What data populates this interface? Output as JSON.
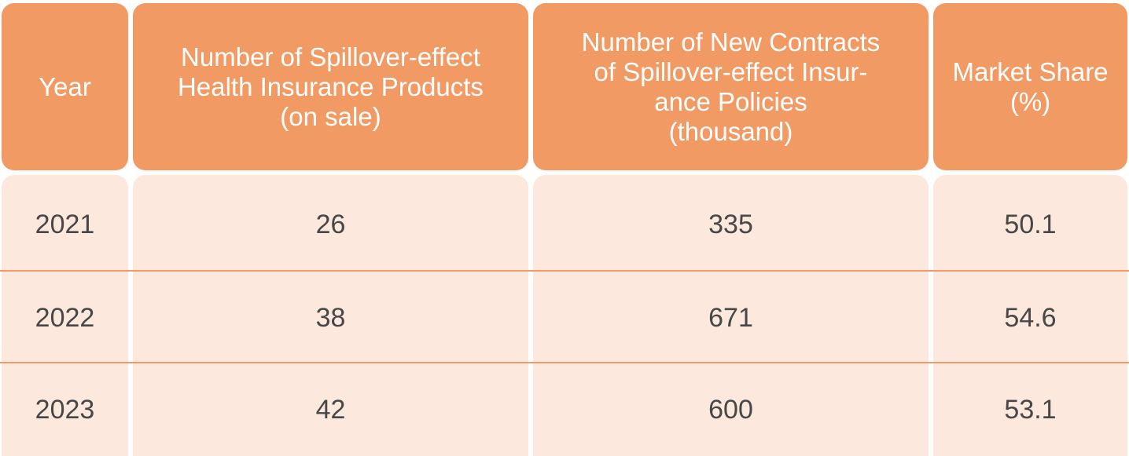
{
  "colors": {
    "header_bg": "#f29a63",
    "body_bg": "#fce8dc",
    "divider": "#f29a63",
    "header_text": "#ffffff",
    "body_text": "#474747"
  },
  "table": {
    "headers": [
      {
        "lines": [
          "Year"
        ]
      },
      {
        "lines": [
          "Number of Spillover-effect",
          "Health Insurance Products",
          "(on sale)"
        ]
      },
      {
        "lines": [
          "Number of New Contracts",
          "of Spillover-effect Insur-",
          "ance Policies",
          "(thousand)"
        ]
      },
      {
        "lines": [
          "Market Share",
          "(%)"
        ]
      }
    ],
    "rows": [
      [
        "2021",
        "26",
        "335",
        "50.1"
      ],
      [
        "2022",
        "38",
        "671",
        "54.6"
      ],
      [
        "2023",
        "42",
        "600",
        "53.1"
      ]
    ]
  }
}
